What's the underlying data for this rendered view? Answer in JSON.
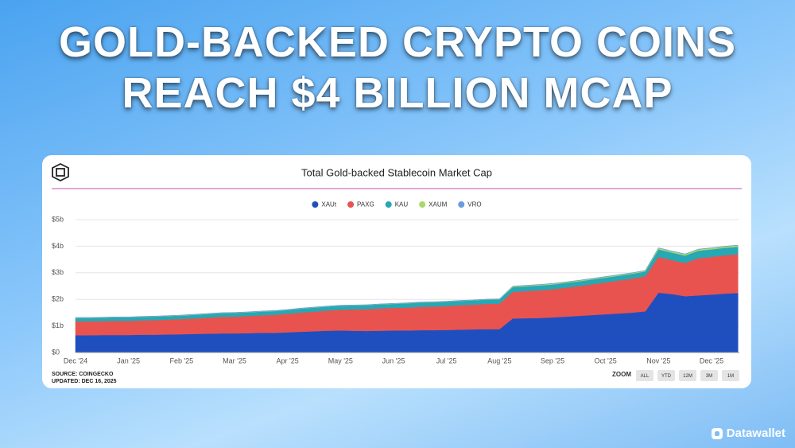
{
  "header": {
    "title_line1": "GOLD-BACKED CRYPTO COINS",
    "title_line2": "REACH $4 BILLION MCAP"
  },
  "chart_data": {
    "type": "stacked-area",
    "title": "Total Gold-backed Stablecoin Market Cap",
    "categories": [
      "Dec '24",
      null,
      null,
      null,
      "Jan '25",
      null,
      null,
      null,
      "Feb '25",
      null,
      null,
      null,
      "Mar '25",
      null,
      null,
      null,
      "Apr '25",
      null,
      null,
      null,
      "May '25",
      null,
      null,
      null,
      "Jun '25",
      null,
      null,
      null,
      "Jul '25",
      null,
      null,
      null,
      "Aug '25",
      null,
      null,
      null,
      "Sep '25",
      null,
      null,
      null,
      "Oct '25",
      null,
      null,
      null,
      "Nov '25",
      null,
      null,
      null,
      "Dec '25",
      null,
      null
    ],
    "series": [
      {
        "name": "XAUt",
        "color": "#1f4fbf",
        "values": [
          0.65,
          0.65,
          0.66,
          0.66,
          0.66,
          0.67,
          0.67,
          0.68,
          0.69,
          0.7,
          0.71,
          0.72,
          0.72,
          0.73,
          0.74,
          0.74,
          0.76,
          0.78,
          0.8,
          0.82,
          0.83,
          0.82,
          0.81,
          0.82,
          0.83,
          0.83,
          0.84,
          0.84,
          0.85,
          0.86,
          0.87,
          0.88,
          0.88,
          1.28,
          1.29,
          1.3,
          1.32,
          1.35,
          1.38,
          1.41,
          1.44,
          1.47,
          1.5,
          1.55,
          2.25,
          2.2,
          2.12,
          2.15,
          2.18,
          2.22,
          2.24
        ]
      },
      {
        "name": "PAXG",
        "color": "#e8534f",
        "values": [
          0.52,
          0.52,
          0.52,
          0.53,
          0.53,
          0.54,
          0.55,
          0.56,
          0.57,
          0.58,
          0.6,
          0.62,
          0.63,
          0.64,
          0.66,
          0.68,
          0.7,
          0.72,
          0.74,
          0.76,
          0.78,
          0.8,
          0.82,
          0.84,
          0.85,
          0.86,
          0.88,
          0.89,
          0.9,
          0.92,
          0.93,
          0.95,
          0.96,
          1.0,
          1.02,
          1.04,
          1.06,
          1.09,
          1.12,
          1.16,
          1.2,
          1.24,
          1.28,
          1.32,
          1.35,
          1.28,
          1.25,
          1.4,
          1.42,
          1.44,
          1.46
        ]
      },
      {
        "name": "KAU",
        "color": "#26a8b5",
        "values": [
          0.13,
          0.13,
          0.13,
          0.13,
          0.13,
          0.13,
          0.13,
          0.13,
          0.13,
          0.14,
          0.14,
          0.14,
          0.14,
          0.14,
          0.14,
          0.14,
          0.14,
          0.15,
          0.15,
          0.15,
          0.15,
          0.15,
          0.15,
          0.15,
          0.15,
          0.16,
          0.16,
          0.16,
          0.16,
          0.16,
          0.16,
          0.16,
          0.16,
          0.18,
          0.18,
          0.18,
          0.18,
          0.18,
          0.18,
          0.18,
          0.18,
          0.18,
          0.18,
          0.18,
          0.28,
          0.28,
          0.28,
          0.28,
          0.28,
          0.28,
          0.28
        ]
      },
      {
        "name": "XAUM",
        "color": "#a8d86a",
        "values": [
          0.01,
          0.01,
          0.01,
          0.01,
          0.01,
          0.01,
          0.01,
          0.01,
          0.01,
          0.01,
          0.01,
          0.01,
          0.01,
          0.01,
          0.01,
          0.01,
          0.01,
          0.01,
          0.01,
          0.01,
          0.01,
          0.01,
          0.01,
          0.01,
          0.01,
          0.01,
          0.01,
          0.01,
          0.01,
          0.01,
          0.01,
          0.01,
          0.01,
          0.03,
          0.03,
          0.03,
          0.03,
          0.03,
          0.03,
          0.03,
          0.03,
          0.03,
          0.03,
          0.03,
          0.05,
          0.05,
          0.05,
          0.05,
          0.05,
          0.05,
          0.05
        ]
      },
      {
        "name": "VRO",
        "color": "#6a9be0",
        "values": [
          0.01,
          0.01,
          0.01,
          0.01,
          0.01,
          0.01,
          0.01,
          0.01,
          0.01,
          0.01,
          0.01,
          0.01,
          0.01,
          0.01,
          0.01,
          0.01,
          0.01,
          0.01,
          0.01,
          0.01,
          0.01,
          0.01,
          0.01,
          0.01,
          0.01,
          0.01,
          0.01,
          0.01,
          0.01,
          0.01,
          0.01,
          0.01,
          0.01,
          0.01,
          0.01,
          0.01,
          0.01,
          0.01,
          0.01,
          0.01,
          0.01,
          0.01,
          0.01,
          0.01,
          0.01,
          0.01,
          0.01,
          0.01,
          0.01,
          0.01,
          0.01
        ]
      }
    ],
    "ylim": [
      0,
      5
    ],
    "yticks": [
      {
        "value": 0,
        "label": "$0"
      },
      {
        "value": 1,
        "label": "$1b"
      },
      {
        "value": 2,
        "label": "$2b"
      },
      {
        "value": 3,
        "label": "$3b"
      },
      {
        "value": 4,
        "label": "$4b"
      },
      {
        "value": 5,
        "label": "$5b"
      }
    ],
    "grid": true,
    "legend": "top"
  },
  "footer": {
    "source": "SOURCE: COINGECKO",
    "updated": "UPDATED: DEC 16, 2025"
  },
  "zoom": {
    "label": "ZOOM",
    "buttons": [
      "ALL",
      "YTD",
      "12M",
      "3M",
      "1M"
    ]
  },
  "brand": "Datawallet"
}
